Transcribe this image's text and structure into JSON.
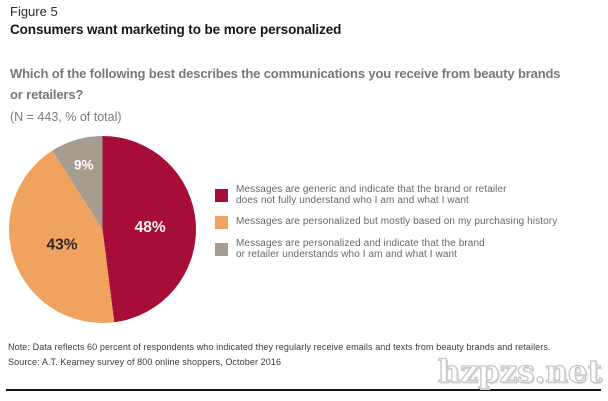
{
  "figure": {
    "label": "Figure 5",
    "title": "Consumers want marketing to be more personalized"
  },
  "question": {
    "line1": "Which of the following best describes the communications you receive from beauty brands",
    "line2": "or retailers?",
    "sample": "(N = 443, % of total)"
  },
  "chart_data": {
    "type": "pie",
    "title": "Which of the following best describes the communications you receive from beauty brands or retailers?",
    "sample_note": "(N = 443, % of total)",
    "start_angle_deg": 0,
    "direction": "clockwise",
    "legend_position": "right",
    "slices": [
      {
        "label": "Messages are generic and indicate that the brand or retailer does not fully understand who I am and what I want",
        "value": 48,
        "color": "#A60E37",
        "label_color": "#FDF4F2"
      },
      {
        "label": "Messages are personalized but mostly based on my purchasing history",
        "value": 43,
        "color": "#F0A35F",
        "label_color": "#35282B"
      },
      {
        "label": "Messages are personalized and indicate that the brand or retailer understands who I am and what I want",
        "value": 9,
        "color": "#A69C90",
        "label_color": "#FFFFFF"
      }
    ],
    "label_radius_fraction": [
      0.51,
      0.46,
      0.72
    ],
    "label_font_px": [
      15.5,
      15.5,
      13.5
    ]
  },
  "legend": {
    "items": [
      {
        "color": "#A60E37",
        "lines": [
          "Messages are generic and indicate that the brand or retailer",
          "does not fully understand who I am and what I want"
        ]
      },
      {
        "color": "#F0A35F",
        "lines": [
          "Messages are personalized but mostly based on my purchasing history"
        ]
      },
      {
        "color": "#A69C90",
        "lines": [
          "Messages are personalized and indicate that the brand",
          "or retailer understands who I am and what I want"
        ]
      }
    ]
  },
  "footnotes": {
    "note": "Note: Data reflects 60 percent of respondents who indicated they regularly receive emails and texts from beauty brands and retailers.",
    "source": "Source: A.T. Kearney survey of 800 online shoppers, October 2016"
  },
  "watermark": {
    "text": "hzpzs.net"
  }
}
